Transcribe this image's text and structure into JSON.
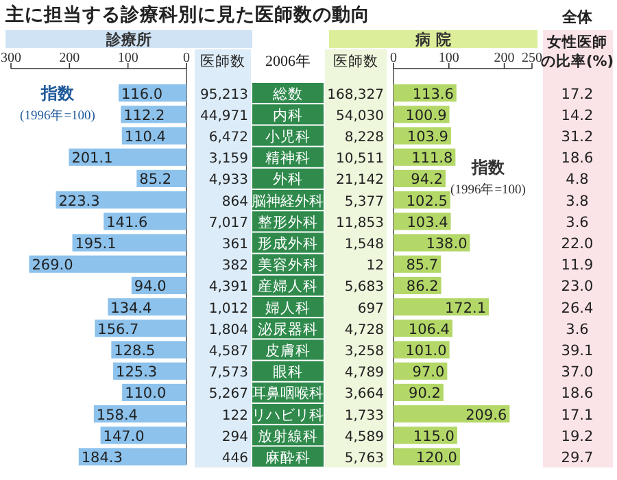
{
  "chart_data": [
    {
      "type": "bar",
      "orientation": "horizontal",
      "title": "主に担当する診療科別に見た医師数の動向",
      "subtitle": "診療所",
      "ylabel": "2006年",
      "categories": [
        "総数",
        "内科",
        "小児科",
        "精神科",
        "外科",
        "脳神経外科",
        "整形外科",
        "形成外科",
        "美容外科",
        "産婦人科",
        "婦人科",
        "泌尿器科",
        "皮膚科",
        "眼科",
        "耳鼻咽喉科",
        "リハビリ科",
        "放射線科",
        "麻酔科"
      ],
      "color": "#8cc2ec",
      "values": [
        116.0,
        112.2,
        110.4,
        201.1,
        85.2,
        223.3,
        141.6,
        195.1,
        269.0,
        94.0,
        134.4,
        156.7,
        128.5,
        125.3,
        110.0,
        158.4,
        147.0,
        184.3
      ],
      "value_labels": [
        "116.0",
        "112.2",
        "110.4",
        "201.1",
        "85.2",
        "223.3",
        "141.6",
        "195.1",
        "269.0",
        "94.0",
        "134.4",
        "156.7",
        "128.5",
        "125.3",
        "110.0",
        "158.4",
        "147.0",
        "184.3"
      ],
      "xlim": [
        300,
        0
      ],
      "xticks": [
        300,
        200,
        100,
        0
      ],
      "annotations": [
        "指数",
        "(1996年=100)"
      ]
    },
    {
      "type": "other",
      "title": "医師数",
      "value_labels": [
        "95,213",
        "44,971",
        "6,472",
        "3,159",
        "4,933",
        "864",
        "7,017",
        "361",
        "382",
        "4,391",
        "1,012",
        "1,804",
        "4,587",
        "7,573",
        "5,267",
        "122",
        "294",
        "446"
      ]
    },
    {
      "type": "other",
      "title": "医師数",
      "value_labels": [
        "168,327",
        "54,030",
        "8,228",
        "10,511",
        "21,142",
        "5,377",
        "11,853",
        "1,548",
        "12",
        "5,683",
        "697",
        "4,728",
        "3,258",
        "4,789",
        "3,664",
        "1,733",
        "4,589",
        "5,763"
      ]
    },
    {
      "type": "bar",
      "orientation": "horizontal",
      "subtitle": "病 院",
      "color": "#b4d868",
      "values": [
        113.6,
        100.9,
        103.9,
        111.8,
        94.2,
        102.5,
        103.4,
        138.0,
        85.7,
        86.2,
        172.1,
        106.4,
        101.0,
        97.0,
        90.2,
        209.6,
        115.0,
        120.0
      ],
      "value_labels": [
        "113.6",
        "100.9",
        "103.9",
        "111.8",
        "94.2",
        "102.5",
        "103.4",
        "138.0",
        "85.7",
        "86.2",
        "172.1",
        "106.4",
        "101.0",
        "97.0",
        "90.2",
        "209.6",
        "115.0",
        "120.0"
      ],
      "xlim": [
        0,
        250
      ],
      "xticks": [
        0,
        100,
        200,
        250
      ],
      "annotations": [
        "指数",
        "(1996年=100)"
      ]
    },
    {
      "type": "other",
      "title": "全体",
      "subtitle": "女性医師の比率(%)",
      "value_labels": [
        "17.2",
        "14.2",
        "31.2",
        "18.6",
        "4.8",
        "3.8",
        "3.6",
        "22.0",
        "11.9",
        "23.0",
        "26.4",
        "3.6",
        "39.1",
        "37.0",
        "18.6",
        "17.1",
        "19.2",
        "29.7"
      ]
    }
  ]
}
